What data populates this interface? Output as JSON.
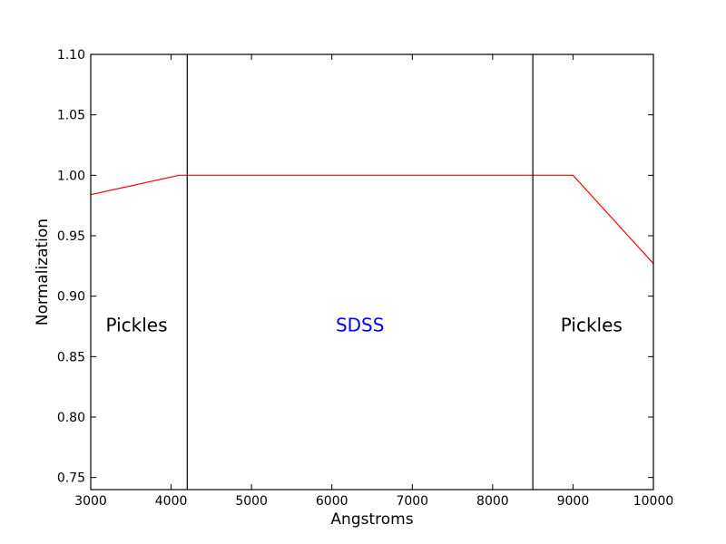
{
  "chart_data": {
    "type": "line",
    "xlabel": "Angstroms",
    "ylabel": "Normalization",
    "xlim": [
      3000,
      10000
    ],
    "ylim": [
      0.74,
      1.1
    ],
    "x_ticks": [
      3000,
      4000,
      5000,
      6000,
      7000,
      8000,
      9000,
      10000
    ],
    "y_ticks": [
      0.75,
      0.8,
      0.85,
      0.9,
      0.95,
      1.0,
      1.05,
      1.1
    ],
    "grid": false,
    "series": [
      {
        "color": "#ff0000",
        "x": [
          3000,
          4100,
          9000,
          10000
        ],
        "y": [
          0.984,
          1.0,
          1.0,
          0.927
        ]
      }
    ],
    "vertical_lines": [
      4200,
      8500
    ],
    "annotations": [
      {
        "text": "Pickles",
        "x": 3570,
        "y": 0.875,
        "color": "#000000"
      },
      {
        "text": "SDSS",
        "x": 6350,
        "y": 0.875,
        "color": "#0000ff"
      },
      {
        "text": "Pickles",
        "x": 9230,
        "y": 0.875,
        "color": "#000000"
      }
    ]
  }
}
